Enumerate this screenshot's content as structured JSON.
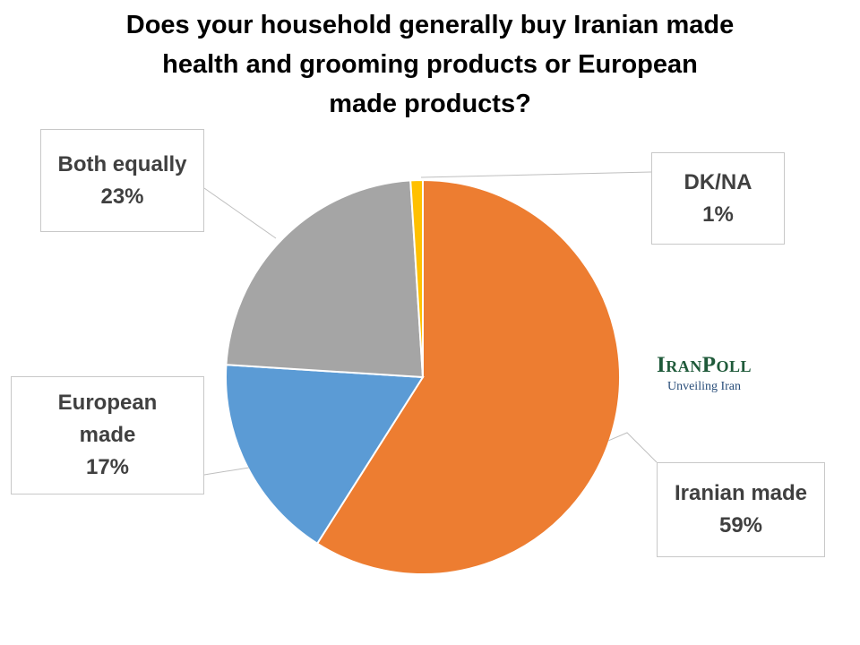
{
  "chart_data": {
    "type": "pie",
    "title_lines": [
      "Does your household generally buy Iranian made",
      "health and grooming products or European",
      "made products?"
    ],
    "slices": [
      {
        "label_lines": [
          "Iranian made"
        ],
        "value": 59,
        "value_label": "59%",
        "color": "#ED7D31"
      },
      {
        "label_lines": [
          "European",
          "made"
        ],
        "value": 17,
        "value_label": "17%",
        "color": "#5B9BD5"
      },
      {
        "label_lines": [
          "Both equally"
        ],
        "value": 23,
        "value_label": "23%",
        "color": "#A5A5A5"
      },
      {
        "label_lines": [
          "DK/NA"
        ],
        "value": 1,
        "value_label": "1%",
        "color": "#FFC000"
      }
    ],
    "start": "12 o'clock",
    "direction": "clockwise",
    "legend": "none (callout labels)"
  },
  "branding": {
    "name": "IranPoll",
    "tagline": "Unveiling Iran"
  }
}
